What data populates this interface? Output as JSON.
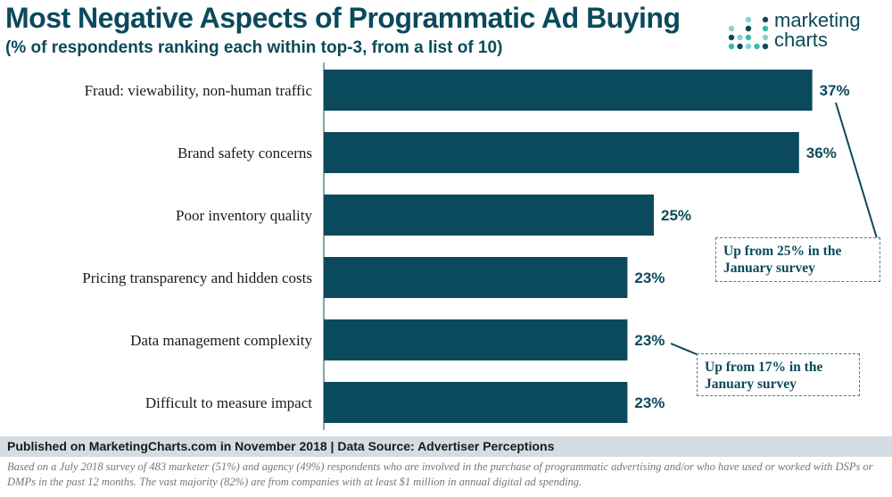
{
  "header": {
    "title": "Most Negative Aspects of Programmatic Ad Buying",
    "subtitle": "(% of respondents ranking each within top-3, from a list of 10)"
  },
  "logo": {
    "line1": "marketing",
    "line2": "charts",
    "icon": "dot-grid-logo-icon",
    "colors": [
      "#3bb6b0",
      "#0b4a5c",
      "#8ad2cf"
    ]
  },
  "chart_data": {
    "type": "bar",
    "orientation": "horizontal",
    "categories": [
      "Fraud: viewability, non-human traffic",
      "Brand safety concerns",
      "Poor inventory quality",
      "Pricing transparency and hidden costs",
      "Data management complexity",
      "Difficult to measure impact"
    ],
    "values": [
      37,
      36,
      25,
      23,
      23,
      23
    ],
    "value_labels": [
      "37%",
      "36%",
      "25%",
      "23%",
      "23%",
      "23%"
    ],
    "unit": "%",
    "xlim": [
      0,
      40
    ],
    "grid": false,
    "bar_color": "#0b4a5c",
    "annotations": [
      {
        "category_index": 0,
        "text_line1": "Up from 25% in the",
        "text_line2": "January survey"
      },
      {
        "category_index": 4,
        "text_line1": "Up from 17% in the",
        "text_line2": "January survey"
      }
    ]
  },
  "footer": {
    "published": "Published on MarketingCharts.com in November 2018 | Data Source: Advertiser Perceptions",
    "note": "Based on a July 2018 survey of 483 marketer (51%) and agency (49%) respondents who are involved in the purchase of programmatic advertising and/or who have used or worked with DSPs or DMPs in the past 12 months. The vast majority (82%) are from companies with at least $1 million in annual digital ad spending."
  }
}
